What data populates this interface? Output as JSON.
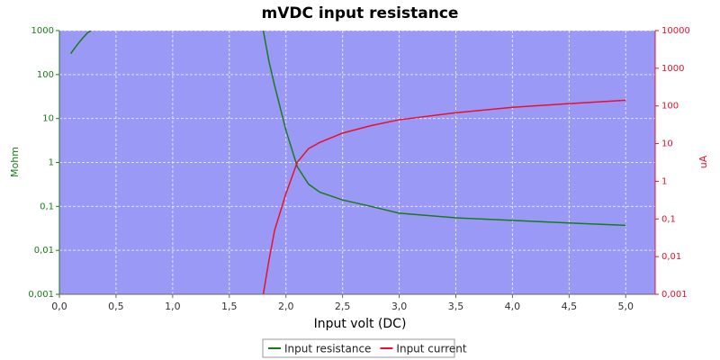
{
  "chart_data": {
    "type": "line",
    "title": "mVDC input resistance",
    "xlabel": "Input volt (DC)",
    "ylabel": "Mohm",
    "y2label": "uA",
    "xlim": [
      0,
      5.26
    ],
    "xticks": [
      {
        "value": 0,
        "label": "0,0"
      },
      {
        "value": 0.5,
        "label": "0,5"
      },
      {
        "value": 1,
        "label": "1,0"
      },
      {
        "value": 1.5,
        "label": "1,5"
      },
      {
        "value": 2,
        "label": "2,0"
      },
      {
        "value": 2.5,
        "label": "2,5"
      },
      {
        "value": 3,
        "label": "3,0"
      },
      {
        "value": 3.5,
        "label": "3,5"
      },
      {
        "value": 4,
        "label": "4,0"
      },
      {
        "value": 4.5,
        "label": "4,5"
      },
      {
        "value": 5,
        "label": "5,0"
      }
    ],
    "ylog": true,
    "ylim": [
      0.001,
      1000
    ],
    "yticks": [
      {
        "value": 0.001,
        "label": "0,001"
      },
      {
        "value": 0.01,
        "label": "0,01"
      },
      {
        "value": 0.1,
        "label": "0,1"
      },
      1,
      10,
      100,
      1000
    ],
    "y2log": true,
    "y2lim": [
      0.001,
      10000
    ],
    "y2ticks": [
      {
        "value": 0.001,
        "label": "0,001"
      },
      {
        "value": 0.01,
        "label": "0,01"
      },
      {
        "value": 0.1,
        "label": "0,1"
      },
      1,
      10,
      100,
      1000,
      10000
    ],
    "grid": true,
    "legend": "bottom",
    "series": [
      {
        "name": "Input resistance",
        "color": "#1a7a1a",
        "x": [
          0.1,
          0.15,
          0.2,
          0.25,
          0.28,
          1.0,
          1.8,
          1.85,
          1.9,
          2.0,
          2.1,
          2.2,
          2.3,
          2.5,
          2.75,
          3.0,
          3.5,
          4.0,
          4.5,
          5.0
        ],
        "values": [
          300,
          450,
          650,
          900,
          1000,
          null,
          1000,
          200,
          56,
          5.4,
          0.8,
          0.32,
          0.21,
          0.14,
          0.1,
          0.07,
          0.055,
          0.048,
          0.042,
          0.037
        ]
      },
      {
        "name": "Input current",
        "color": "#e8102a",
        "axis": "y2",
        "x": [
          1.8,
          1.85,
          1.9,
          2.0,
          2.1,
          2.2,
          2.3,
          2.5,
          2.75,
          3.0,
          3.5,
          4.0,
          4.5,
          5.0
        ],
        "values": [
          0.001,
          0.008,
          0.05,
          0.47,
          3.2,
          7.4,
          10.8,
          19,
          30,
          43,
          66,
          92,
          115,
          142
        ]
      }
    ]
  }
}
